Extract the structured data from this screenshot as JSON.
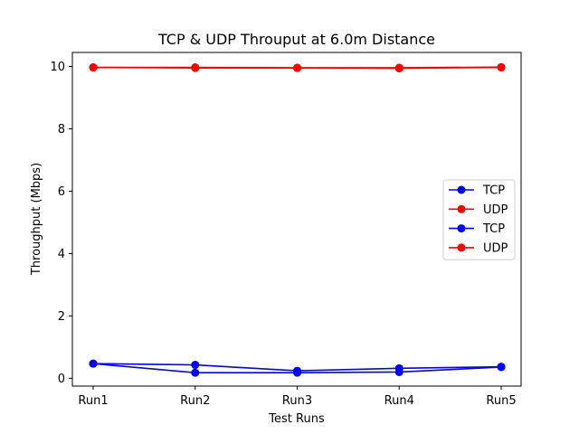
{
  "chart_data": {
    "type": "line",
    "title": "TCP & UDP Throuput at 6.0m Distance",
    "xlabel": "Test Runs",
    "ylabel": "Throughput (Mbps)",
    "categories": [
      "Run1",
      "Run2",
      "Run3",
      "Run4",
      "Run5"
    ],
    "ylim": [
      -0.25,
      10.45
    ],
    "yticks": [
      0,
      2,
      4,
      6,
      8,
      10
    ],
    "grid": false,
    "legend_position": "center-right",
    "series": [
      {
        "name": "TCP",
        "color": "#0000ff",
        "values": [
          0.47,
          0.43,
          0.24,
          0.32,
          0.37
        ]
      },
      {
        "name": "UDP",
        "color": "#ff0000",
        "values": [
          9.97,
          9.97,
          9.96,
          9.96,
          9.98
        ]
      },
      {
        "name": "TCP",
        "color": "#0000ff",
        "values": [
          0.47,
          0.18,
          0.18,
          0.2,
          0.36
        ]
      },
      {
        "name": "UDP",
        "color": "#ff0000",
        "values": [
          9.97,
          9.95,
          9.95,
          9.94,
          9.97
        ]
      }
    ]
  }
}
